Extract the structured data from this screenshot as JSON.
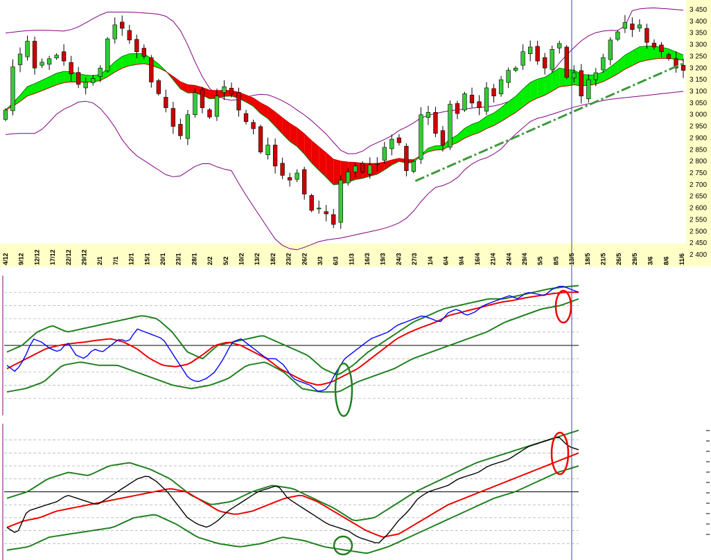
{
  "colors": {
    "axis_bg": "#ffffc8",
    "bollinger": "#800080",
    "ema_fast": "#008000",
    "ema_slow": "#cc0000",
    "cloud_up": "#00ee00",
    "cloud_down": "#ee0000",
    "candle_up": "#33cc33",
    "candle_down": "#cc0000",
    "trendline": "#3a9a3a",
    "osc_line1": "#0000ff",
    "osc_line2": "#000000",
    "osc_signal": "#ee0000",
    "osc_band": "#208020",
    "grid": "#999999",
    "cursor": "#4040a0"
  },
  "chart_data": [
    {
      "type": "candlestick",
      "panel": "price",
      "title": "",
      "xlabel": "",
      "ylabel": "",
      "ylim": [
        2400,
        3450
      ],
      "yticks": [
        "3 450",
        "3 400",
        "3 350",
        "3 300",
        "3 250",
        "3 200",
        "3 150",
        "3 100",
        "3 050",
        "3 000",
        "2 950",
        "2 900",
        "2 850",
        "2 800",
        "2 750",
        "2 700",
        "2 650",
        "2 600",
        "2 550",
        "2 500",
        "2 450",
        "2 400"
      ],
      "xticks": [
        "4/12",
        "9/12",
        "12/12",
        "17/12",
        "22/12",
        "29/12",
        "2/1",
        "7/1",
        "12/1",
        "15/1",
        "20/1",
        "23/1",
        "28/1",
        "2/2",
        "5/2",
        "10/2",
        "13/2",
        "18/2",
        "23/2",
        "26/2",
        "3/3",
        "6/3",
        "11/3",
        "16/3",
        "19/3",
        "24/3",
        "27/3",
        "1/4",
        "6/4",
        "9/4",
        "16/4",
        "21/4",
        "24/4",
        "29/4",
        "5/5",
        "8/5",
        "13/5",
        "18/5",
        "21/5",
        "26/5",
        "29/5",
        "3/6",
        "8/6",
        "11/6"
      ],
      "close": [
        3020,
        3205,
        3260,
        3315,
        3200,
        3225,
        3240,
        3255,
        3230,
        3175,
        3130,
        3140,
        3155,
        3200,
        3325,
        3385,
        3370,
        3320,
        3270,
        3250,
        3140,
        3090,
        3030,
        2950,
        2910,
        3000,
        3095,
        3030,
        2990,
        3080,
        3120,
        3090,
        3020,
        2970,
        2940,
        2840,
        2870,
        2780,
        2740,
        2720,
        2750,
        2660,
        2590,
        2600,
        2575,
        2530,
        2720,
        2755,
        2780,
        2755,
        2785,
        2790,
        2860,
        2895,
        2880,
        2760,
        2800,
        3000,
        3010,
        2920,
        2870,
        3045,
        3005,
        3090,
        3050,
        3030,
        3115,
        3080,
        3150,
        3190,
        3200,
        3270,
        3290,
        3230,
        3200,
        3280,
        3305,
        3160,
        3180,
        3080,
        3150,
        3180,
        3245,
        3320,
        3355,
        3395,
        3365,
        3385,
        3310,
        3290,
        3270,
        3240,
        3200,
        3190
      ],
      "bollinger_upper": [
        3350,
        3355,
        3360,
        3362,
        3362,
        3360,
        3358,
        3372,
        3395,
        3420,
        3440,
        3440,
        3440,
        3438,
        3435,
        3432,
        3420,
        3385,
        3300,
        3200,
        3120,
        3080,
        3060,
        3065,
        3078,
        3088,
        3085,
        3068,
        3045,
        3015,
        2985,
        2945,
        2905,
        2850,
        2830,
        2835,
        2865,
        2885,
        2905,
        2935,
        2955,
        2985,
        3000,
        3010,
        3018,
        3022,
        3028,
        3032,
        3035,
        3045,
        3060,
        3065,
        3085,
        3130,
        3180,
        3235,
        3280,
        3320,
        3348,
        3358,
        3362,
        3360,
        3450,
        3455,
        3458,
        3455,
        3452,
        3448
      ],
      "bollinger_lower": [
        2915,
        2920,
        2920,
        2920,
        2965,
        3015,
        3035,
        3060,
        3055,
        3020,
        2960,
        2880,
        2830,
        2800,
        2770,
        2740,
        2730,
        2760,
        2790,
        2790,
        2770,
        2760,
        2680,
        2610,
        2540,
        2470,
        2430,
        2420,
        2435,
        2455,
        2465,
        2470,
        2480,
        2490,
        2500,
        2510,
        2525,
        2545,
        2590,
        2650,
        2690,
        2700,
        2730,
        2780,
        2805,
        2820,
        2850,
        2900,
        2940,
        2980,
        2990,
        3005,
        3020,
        3035,
        3045,
        3055,
        3065,
        3070,
        3075,
        3080,
        3085,
        3090,
        3095,
        3100
      ],
      "ema_fast_end": 3205,
      "ema_slow_end": 3215,
      "trendline": {
        "from": [
          2716,
          "27/3"
        ],
        "to": [
          3220,
          "11/6"
        ]
      }
    },
    {
      "type": "line",
      "panel": "oscillator_1",
      "title": "",
      "series": [
        {
          "name": "",
          "role": "oscillator"
        },
        {
          "name": "",
          "role": "signal"
        },
        {
          "name": "",
          "role": "band_upper"
        },
        {
          "name": "",
          "role": "band_lower"
        }
      ],
      "ylim": [
        -100,
        100
      ],
      "zero_line": true,
      "oscillator": [
        -30,
        -40,
        -20,
        10,
        5,
        -5,
        -10,
        5,
        -15,
        -20,
        -5,
        -10,
        0,
        10,
        5,
        25,
        20,
        15,
        10,
        -10,
        -30,
        -50,
        -55,
        -50,
        -40,
        -20,
        5,
        10,
        0,
        -10,
        -20,
        -20,
        -30,
        -50,
        -55,
        -60,
        -70,
        -65,
        -40,
        -20,
        -10,
        0,
        10,
        15,
        20,
        30,
        35,
        40,
        45,
        40,
        35,
        50,
        55,
        45,
        50,
        60,
        65,
        70,
        75,
        70,
        80,
        78,
        75,
        85,
        90,
        85,
        80
      ],
      "signal": [
        -35,
        -25,
        -15,
        -5,
        0,
        3,
        5,
        8,
        10,
        5,
        -5,
        -20,
        -30,
        -32,
        -28,
        -15,
        0,
        5,
        0,
        -10,
        -20,
        -35,
        -45,
        -55,
        -60,
        -55,
        -45,
        -35,
        -20,
        -5,
        10,
        20,
        28,
        35,
        45,
        50,
        55,
        60,
        65,
        68,
        72,
        75,
        78,
        80,
        80
      ],
      "band_upper": [
        -10,
        0,
        20,
        30,
        20,
        25,
        30,
        35,
        40,
        45,
        40,
        20,
        -10,
        -20,
        0,
        5,
        10,
        15,
        5,
        -5,
        -15,
        -35,
        -45,
        -30,
        -10,
        5,
        20,
        35,
        45,
        55,
        60,
        65,
        70,
        70,
        75,
        80,
        85,
        88,
        90
      ],
      "band_lower": [
        -70,
        -65,
        -55,
        -30,
        -25,
        -30,
        -30,
        -40,
        -50,
        -60,
        -65,
        -60,
        -50,
        -30,
        -25,
        -40,
        -65,
        -70,
        -70,
        -55,
        -45,
        -35,
        -20,
        -10,
        0,
        10,
        20,
        35,
        45,
        55,
        60,
        70
      ],
      "annotations": [
        "green ellipse at 11/3",
        "red ellipse at 13/5"
      ]
    },
    {
      "type": "line",
      "panel": "oscillator_2",
      "title": "",
      "series": [
        {
          "name": "",
          "role": "oscillator"
        },
        {
          "name": "",
          "role": "signal"
        },
        {
          "name": "",
          "role": "band_upper"
        },
        {
          "name": "",
          "role": "band_lower"
        }
      ],
      "ylim": [
        -100,
        100
      ],
      "zero_line": true,
      "oscillator": [
        -55,
        -65,
        -30,
        -25,
        -20,
        -15,
        -5,
        -10,
        -15,
        -20,
        -10,
        0,
        10,
        20,
        25,
        15,
        0,
        -20,
        -40,
        -50,
        -55,
        -45,
        -30,
        -20,
        -10,
        0,
        5,
        10,
        -10,
        -20,
        -30,
        -40,
        -50,
        -55,
        -60,
        -70,
        -75,
        -80,
        -65,
        -45,
        -30,
        -10,
        0,
        5,
        10,
        20,
        25,
        30,
        40,
        45,
        50,
        60,
        70,
        75,
        80,
        85,
        70,
        65
      ],
      "signal": [
        -55,
        -45,
        -40,
        -30,
        -25,
        -20,
        -15,
        -10,
        -5,
        0,
        5,
        0,
        -15,
        -30,
        -35,
        -30,
        -20,
        -10,
        -5,
        -15,
        -30,
        -45,
        -60,
        -70,
        -65,
        -50,
        -35,
        -20,
        -10,
        0,
        10,
        20,
        30,
        40,
        50,
        60
      ],
      "band_upper": [
        -10,
        0,
        20,
        30,
        25,
        40,
        45,
        35,
        20,
        -5,
        -20,
        -15,
        0,
        10,
        5,
        -10,
        -25,
        -45,
        -40,
        -20,
        0,
        15,
        30,
        45,
        55,
        65,
        75,
        85,
        95
      ],
      "band_lower": [
        -90,
        -85,
        -70,
        -65,
        -60,
        -55,
        -40,
        -35,
        -50,
        -70,
        -80,
        -85,
        -80,
        -70,
        -75,
        -85,
        -90,
        -95,
        -85,
        -70,
        -55,
        -40,
        -25,
        -10,
        0,
        15,
        30,
        40
      ],
      "annotations": [
        "green ellipse at 11/3",
        "red ellipse at 13/5"
      ]
    }
  ]
}
